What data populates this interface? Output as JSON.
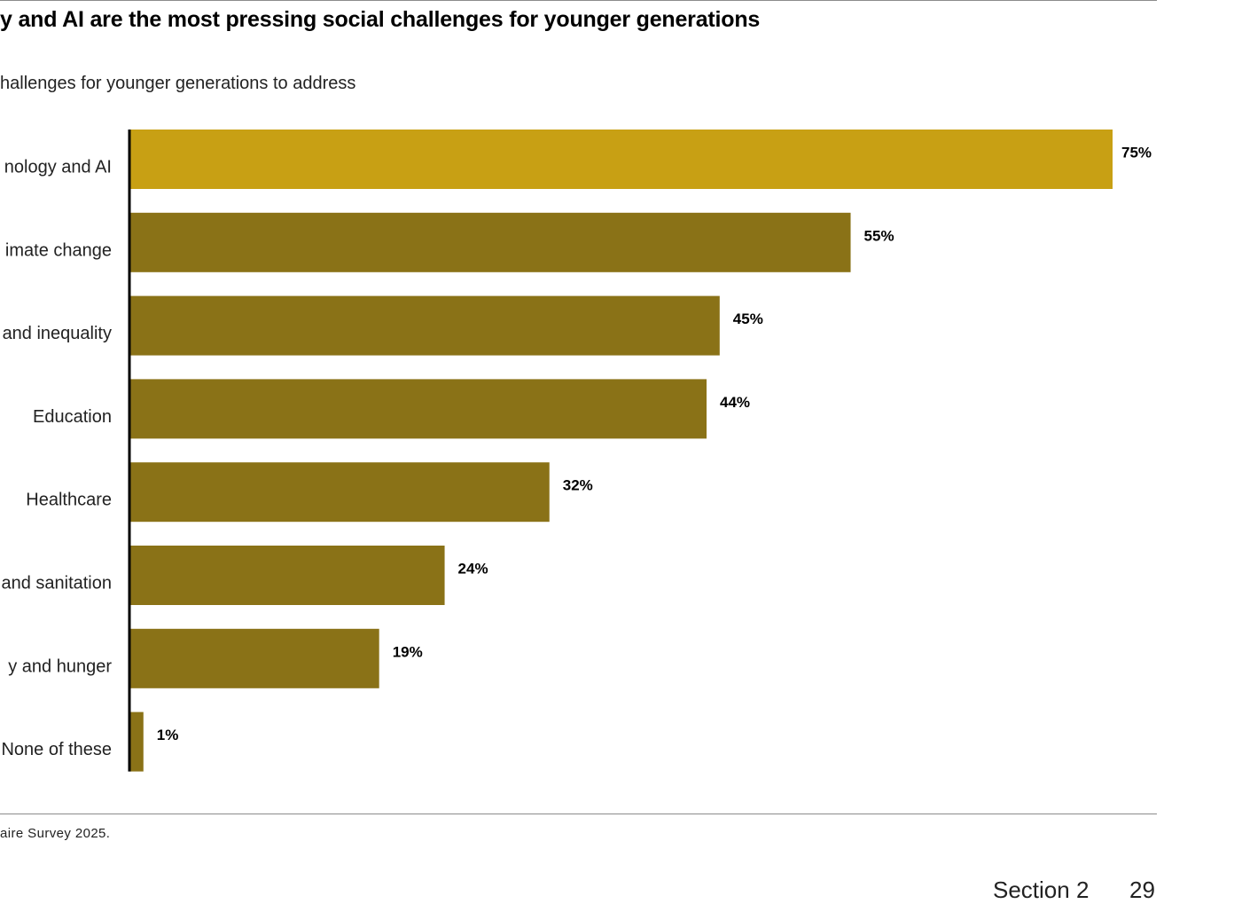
{
  "title": "y and AI are the most pressing social challenges for younger generations",
  "subtitle": "hallenges for younger generations to address",
  "source": "aire Survey 2025.",
  "footer": {
    "section": "Section 2",
    "page": "29"
  },
  "colors": {
    "highlight": "#c8a014",
    "bar": "#8a7217",
    "axis": "#000000",
    "rule": "#8c8c8c"
  },
  "chart_data": {
    "type": "bar",
    "orientation": "horizontal",
    "categories": [
      "nology and AI",
      "imate change",
      "and inequality",
      "Education",
      "Healthcare",
      "and sanitation",
      "y and hunger",
      "None of these"
    ],
    "values": [
      75,
      55,
      45,
      44,
      32,
      24,
      19,
      1
    ],
    "value_labels": [
      "75%",
      "55%",
      "45%",
      "44%",
      "32%",
      "24%",
      "19%",
      "1%"
    ],
    "highlight_index": 0,
    "xlim": [
      0,
      75
    ],
    "grid": false,
    "legend": "none"
  }
}
